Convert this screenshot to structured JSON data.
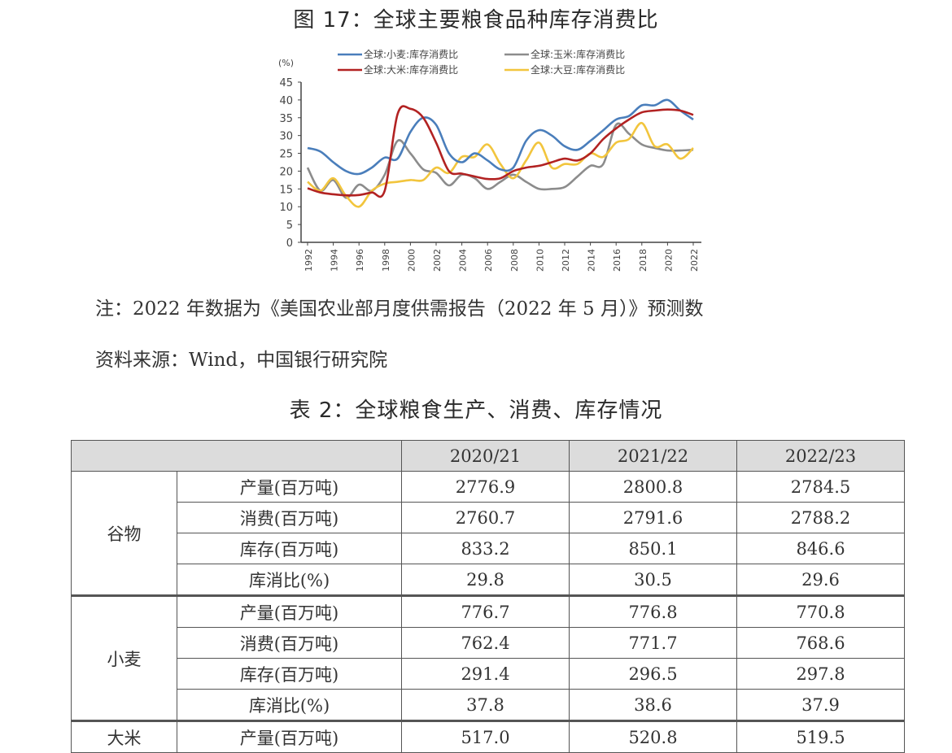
{
  "figure": {
    "title": "图 17：全球主要粮食品种库存消费比",
    "note": "注：2022 年数据为《美国农业部月度供需报告（2022 年 5 月）》预测数",
    "source": "资料来源：Wind，中国银行研究院"
  },
  "chart_data": {
    "type": "line",
    "title": "图 17：全球主要粮食品种库存消费比",
    "xlabel": "",
    "ylabel": "(%)",
    "ylim": [
      0,
      45
    ],
    "yticks": [
      0,
      5,
      10,
      15,
      20,
      25,
      30,
      35,
      40,
      45
    ],
    "xticks": [
      "1992",
      "1994",
      "1996",
      "1998",
      "2000",
      "2002",
      "2004",
      "2006",
      "2008",
      "2010",
      "2012",
      "2014",
      "2016",
      "2018",
      "2020",
      "2022"
    ],
    "x": [
      1992,
      1993,
      1994,
      1995,
      1996,
      1997,
      1998,
      1999,
      2000,
      2001,
      2002,
      2003,
      2004,
      2005,
      2006,
      2007,
      2008,
      2009,
      2010,
      2011,
      2012,
      2013,
      2014,
      2015,
      2016,
      2017,
      2018,
      2019,
      2020,
      2021,
      2022
    ],
    "legend_position": "top",
    "grid": false,
    "series": [
      {
        "name": "全球:小麦:库存消费比",
        "color": "#4a7ebb",
        "values": [
          26.5,
          25.5,
          22.5,
          20,
          19.2,
          21,
          23.8,
          23.5,
          31,
          35,
          33,
          25,
          22.5,
          25,
          23,
          20.5,
          21,
          28.5,
          31.5,
          30,
          27,
          26,
          28.5,
          31.5,
          34.5,
          35.5,
          38.5,
          38.5,
          40,
          37,
          34.5
        ]
      },
      {
        "name": "全球:玉米:库存消费比",
        "color": "#8c8c8c",
        "values": [
          21,
          14.5,
          17.5,
          12.5,
          16.2,
          14.5,
          19,
          28.5,
          25,
          20.5,
          19.5,
          16,
          19,
          18,
          15,
          17,
          19,
          17,
          15,
          15,
          15.5,
          18.5,
          21.5,
          22,
          33,
          30.5,
          27.5,
          26.5,
          25.8,
          25.8,
          26
        ]
      },
      {
        "name": "全球:大米:库存消费比",
        "color": "#b22222",
        "values": [
          15.2,
          14,
          13.5,
          13.2,
          13.3,
          14,
          14.5,
          36,
          37.5,
          35,
          28,
          20,
          19.3,
          18.5,
          17.8,
          18,
          20,
          21,
          21.5,
          22.5,
          23.5,
          23,
          25,
          29,
          32,
          34.5,
          36.5,
          37,
          37.3,
          37,
          35.8
        ]
      },
      {
        "name": "全球:大豆:库存消费比",
        "color": "#f2c53d",
        "values": [
          17,
          14.5,
          18,
          13,
          10,
          14.5,
          16.5,
          17,
          17.5,
          17.5,
          21,
          19.5,
          24,
          24,
          27.5,
          22,
          18,
          23,
          28,
          21,
          22,
          22,
          25,
          24,
          28,
          29,
          33.5,
          27,
          27.5,
          23.5,
          26.5
        ]
      }
    ]
  },
  "table": {
    "title": "表 2：全球粮食生产、消费、库存情况",
    "columns": [
      "",
      "",
      "2020/21",
      "2021/22",
      "2022/23"
    ],
    "groups": [
      {
        "name": "谷物",
        "rows": [
          {
            "metric": "产量(百万吨)",
            "values": [
              "2776.9",
              "2800.8",
              "2784.5"
            ]
          },
          {
            "metric": "消费(百万吨)",
            "values": [
              "2760.7",
              "2791.6",
              "2788.2"
            ]
          },
          {
            "metric": "库存(百万吨)",
            "values": [
              "833.2",
              "850.1",
              "846.6"
            ]
          },
          {
            "metric": "库消比(%)",
            "values": [
              "29.8",
              "30.5",
              "29.6"
            ]
          }
        ]
      },
      {
        "name": "小麦",
        "rows": [
          {
            "metric": "产量(百万吨)",
            "values": [
              "776.7",
              "776.8",
              "770.8"
            ]
          },
          {
            "metric": "消费(百万吨)",
            "values": [
              "762.4",
              "771.7",
              "768.6"
            ]
          },
          {
            "metric": "库存(百万吨)",
            "values": [
              "291.4",
              "296.5",
              "297.8"
            ]
          },
          {
            "metric": "库消比(%)",
            "values": [
              "37.8",
              "38.6",
              "37.9"
            ]
          }
        ]
      },
      {
        "name": "大米",
        "rows": [
          {
            "metric": "产量(百万吨)",
            "values": [
              "517.0",
              "520.8",
              "519.5"
            ]
          }
        ]
      }
    ]
  }
}
